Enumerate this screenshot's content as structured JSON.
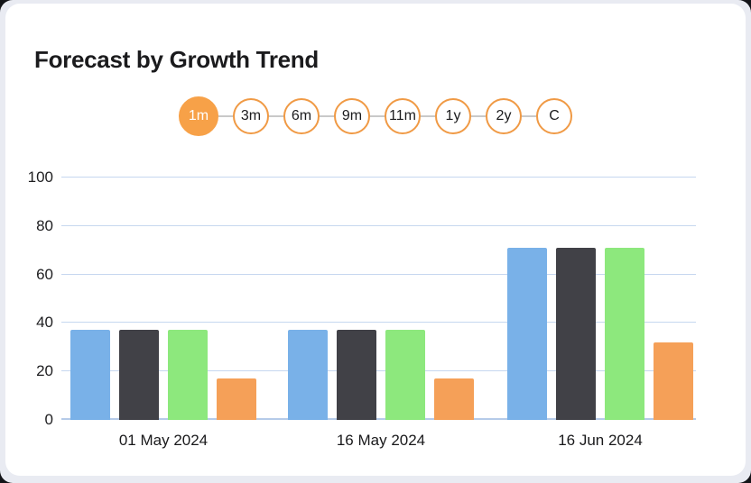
{
  "card": {
    "title": "Forecast by Growth Trend"
  },
  "range_selector": {
    "options": [
      {
        "label": "1m",
        "selected": true
      },
      {
        "label": "3m",
        "selected": false
      },
      {
        "label": "6m",
        "selected": false
      },
      {
        "label": "9m",
        "selected": false
      },
      {
        "label": "11m",
        "selected": false
      },
      {
        "label": "1y",
        "selected": false
      },
      {
        "label": "2y",
        "selected": false
      },
      {
        "label": "C",
        "selected": false
      }
    ],
    "selected_color": "#f7a148",
    "outline_color": "#f09a45",
    "connector_color": "#c9c9c9"
  },
  "colors": {
    "card_background": "#ffffff",
    "page_background": "#e9ebf2",
    "gridline": "#c6d7ef",
    "axis_line": "#b5cbe9",
    "title_text": "#1b1b1d"
  },
  "chart_data": {
    "type": "bar",
    "title": "Forecast by Growth Trend",
    "categories": [
      "01 May 2024",
      "16 May 2024",
      "16 Jun 2024"
    ],
    "series": [
      {
        "name": "blue",
        "color": "#79b1e8",
        "values": [
          37,
          37,
          71
        ]
      },
      {
        "name": "charcoal",
        "color": "#414147",
        "values": [
          37,
          37,
          71
        ]
      },
      {
        "name": "green",
        "color": "#8de87d",
        "values": [
          37,
          37,
          71
        ]
      },
      {
        "name": "orange",
        "color": "#f5a058",
        "values": [
          17,
          17,
          32
        ]
      }
    ],
    "xlabel": "",
    "ylabel": "",
    "ylim": [
      0,
      100
    ],
    "yticks": [
      0,
      20,
      40,
      60,
      80,
      100
    ],
    "grid": true,
    "legend": false
  }
}
